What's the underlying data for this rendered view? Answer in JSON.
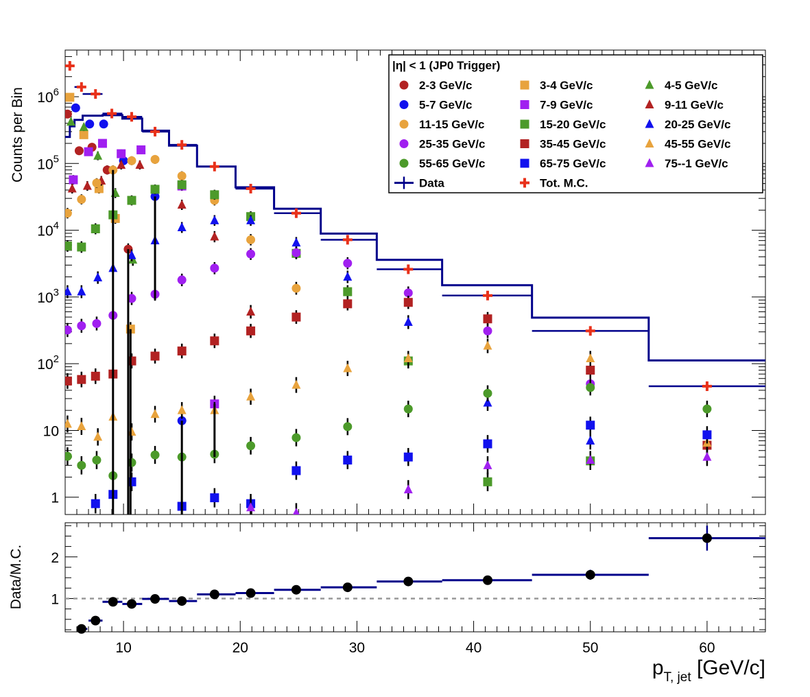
{
  "colors": {
    "data_line": "#00008b",
    "mc_marker": "#e8311a",
    "ratio_marker": "#000000",
    "reference_line": "#999999",
    "frame": "#000000"
  },
  "legend": {
    "header": "|η| < 1 (JP0 Trigger)",
    "data_label": "Data",
    "mc_label": "Tot. M.C."
  },
  "chart_data": [
    {
      "type": "scatter",
      "panel": "main",
      "ylabel": "Counts per Bin",
      "y_scale": "log",
      "xlim": [
        5,
        65
      ],
      "ylim": [
        0.55,
        5000000
      ],
      "x_ticks": [
        10,
        20,
        30,
        40,
        50,
        60
      ],
      "y_tick_labels": [
        {
          "value": 1000000,
          "label": "10",
          "exp": "6"
        },
        {
          "value": 100000,
          "label": "10",
          "exp": "5"
        },
        {
          "value": 10000,
          "label": "10",
          "exp": "4"
        },
        {
          "value": 1000,
          "label": "10",
          "exp": "3"
        },
        {
          "value": 100,
          "label": "10",
          "exp": "2"
        },
        {
          "value": 10,
          "label": "10",
          "exp": ""
        },
        {
          "value": 1,
          "label": "1",
          "exp": ""
        }
      ],
      "legend_position": "top-right",
      "data_bins": [
        {
          "x0": 5.0,
          "x1": 5.4,
          "y": 250000
        },
        {
          "x0": 5.4,
          "x1": 5.8,
          "y": 360000
        },
        {
          "x0": 5.8,
          "x1": 6.5,
          "y": 450000
        },
        {
          "x0": 6.5,
          "x1": 8.2,
          "y": 520000
        },
        {
          "x0": 8.2,
          "x1": 9.9,
          "y": 530000
        },
        {
          "x0": 9.9,
          "x1": 11.6,
          "y": 470000
        },
        {
          "x0": 11.6,
          "x1": 13.9,
          "y": 310000
        },
        {
          "x0": 13.9,
          "x1": 16.3,
          "y": 185000
        },
        {
          "x0": 16.3,
          "x1": 19.6,
          "y": 90000
        },
        {
          "x0": 19.6,
          "x1": 22.9,
          "y": 44000
        },
        {
          "x0": 22.9,
          "x1": 26.9,
          "y": 21000
        },
        {
          "x0": 26.9,
          "x1": 31.7,
          "y": 8900
        },
        {
          "x0": 31.7,
          "x1": 37.3,
          "y": 3600
        },
        {
          "x0": 37.3,
          "x1": 45.0,
          "y": 1500
        },
        {
          "x0": 45.0,
          "x1": 55.0,
          "y": 490
        },
        {
          "x0": 55.0,
          "x1": 65.0,
          "y": 112
        }
      ],
      "mc_total": {
        "x": [
          5.4,
          6.4,
          7.6,
          9.0,
          10.7,
          12.7,
          15.0,
          17.8,
          20.9,
          24.8,
          29.2,
          34.4,
          41.2,
          50.0,
          60.0
        ],
        "y": [
          2900000,
          1400000,
          1100000,
          560000,
          500000,
          300000,
          190000,
          90000,
          42000,
          18000,
          7200,
          2600,
          1050,
          310,
          46
        ]
      },
      "series": [
        {
          "name": "2-3 GeV/c",
          "marker": "circle",
          "color": "#b22222",
          "x": [
            5.2,
            6.2,
            7.3,
            8.6,
            10.4
          ],
          "y": [
            550000,
            155000,
            175000,
            80000,
            5200
          ]
        },
        {
          "name": "3-4 GeV/c",
          "marker": "square",
          "color": "#e8a33d",
          "x": [
            5.4,
            6.6,
            7.9,
            9.3,
            10.6
          ],
          "y": [
            980000,
            270000,
            42000,
            15000,
            330
          ]
        },
        {
          "name": "4-5 GeV/c",
          "marker": "triangle",
          "color": "#4c9a2a",
          "x": [
            5.5,
            6.6,
            7.8,
            9.3,
            10.8
          ],
          "y": [
            420000,
            350000,
            130000,
            36000,
            3600
          ]
        },
        {
          "name": "5-7 GeV/c",
          "marker": "circle",
          "color": "#1111ee",
          "x": [
            5.9,
            7.1,
            8.3,
            10.0,
            12.7,
            15.0
          ],
          "y": [
            680000,
            390000,
            390000,
            110000,
            32000,
            14
          ]
        },
        {
          "name": "7-9 GeV/c",
          "marker": "square",
          "color": "#a020f0",
          "x": [
            5.7,
            7.0,
            8.2,
            9.8,
            11.5,
            15.0,
            17.8
          ],
          "y": [
            57000,
            150000,
            200000,
            140000,
            160000,
            46000,
            25
          ]
        },
        {
          "name": "9-11 GeV/c",
          "marker": "triangle",
          "color": "#b22222",
          "x": [
            5.6,
            6.9,
            8.1,
            9.8,
            11.4,
            15.0,
            17.8,
            20.9
          ],
          "y": [
            42000,
            46000,
            55000,
            95000,
            95000,
            24000,
            8000,
            600
          ]
        },
        {
          "name": "11-15 GeV/c",
          "marker": "circle",
          "color": "#e8a33d",
          "x": [
            5.2,
            6.4,
            7.7,
            9.1,
            10.7,
            12.7,
            15.0,
            17.8,
            20.9,
            24.8
          ],
          "y": [
            18000,
            29000,
            51000,
            80000,
            110000,
            115000,
            65000,
            28000,
            7200,
            1350
          ]
        },
        {
          "name": "15-20 GeV/c",
          "marker": "square",
          "color": "#4c9a2a",
          "x": [
            5.2,
            6.4,
            7.6,
            9.1,
            10.7,
            12.7,
            15.0,
            17.8,
            20.9,
            24.8,
            29.2,
            34.4,
            41.2,
            50.0
          ],
          "y": [
            5800,
            5600,
            10500,
            17000,
            28000,
            41000,
            48000,
            34000,
            16000,
            4500,
            1200,
            110,
            1.7,
            3.5
          ]
        },
        {
          "name": "20-25 GeV/c",
          "marker": "triangle",
          "color": "#1111ee",
          "x": [
            5.2,
            6.4,
            7.8,
            9.1,
            10.7,
            12.7,
            15.0,
            17.8,
            20.9,
            24.8,
            29.2,
            34.4,
            41.2,
            50.0
          ],
          "y": [
            1200,
            1200,
            1950,
            2700,
            4200,
            7000,
            11000,
            14000,
            14000,
            6500,
            2000,
            420,
            26,
            7
          ]
        },
        {
          "name": "25-35 GeV/c",
          "marker": "circle",
          "color": "#a020f0",
          "x": [
            5.2,
            6.4,
            7.7,
            9.1,
            10.7,
            12.7,
            15.0,
            17.8,
            20.9,
            24.8,
            29.2,
            34.4,
            41.2,
            50.0
          ],
          "y": [
            320,
            370,
            400,
            530,
            950,
            1100,
            1800,
            2700,
            4400,
            4600,
            3200,
            1150,
            310,
            50
          ]
        },
        {
          "name": "35-45 GeV/c",
          "marker": "square",
          "color": "#b22222",
          "x": [
            5.2,
            6.4,
            7.6,
            9.1,
            10.7,
            12.7,
            15.0,
            17.8,
            20.9,
            24.8,
            29.2,
            34.4,
            41.2,
            50.0,
            60.0
          ],
          "y": [
            55,
            58,
            65,
            70,
            110,
            130,
            155,
            220,
            310,
            500,
            790,
            830,
            470,
            80,
            6
          ]
        },
        {
          "name": "45-55 GeV/c",
          "marker": "triangle",
          "color": "#e8a33d",
          "x": [
            5.2,
            6.4,
            7.8,
            9.1,
            10.7,
            12.7,
            15.0,
            17.8,
            20.9,
            24.8,
            29.2,
            34.4,
            41.2,
            50.0,
            60.0
          ],
          "y": [
            12.5,
            11.5,
            8,
            16,
            9.5,
            17.5,
            20,
            20,
            32,
            48,
            85,
            120,
            185,
            120,
            6.5
          ]
        },
        {
          "name": "55-65 GeV/c",
          "marker": "circle",
          "color": "#4c9a2a",
          "x": [
            5.2,
            6.4,
            7.7,
            9.1,
            10.7,
            12.7,
            15.0,
            17.8,
            20.9,
            24.8,
            29.2,
            34.4,
            41.2,
            50.0,
            60.0
          ],
          "y": [
            4.1,
            3,
            3.6,
            2.1,
            3.3,
            4.3,
            4,
            4.4,
            5.9,
            7.8,
            11.4,
            21,
            36,
            44,
            21
          ]
        },
        {
          "name": "65-75 GeV/c",
          "marker": "square",
          "color": "#1111ee",
          "x": [
            7.6,
            9.1,
            10.7,
            15.0,
            17.8,
            20.9,
            24.8,
            29.2,
            34.4,
            41.2,
            50.0,
            60.0
          ],
          "y": [
            0.8,
            1.1,
            1.7,
            0.73,
            0.98,
            0.8,
            2.5,
            3.6,
            4,
            6.3,
            12,
            8.6
          ]
        },
        {
          "name": "75--1 GeV/c",
          "marker": "triangle",
          "color": "#a020f0",
          "x": [
            20.9,
            24.8,
            34.4,
            41.2,
            50.0,
            60.0
          ],
          "y": [
            0.7,
            0.58,
            1.3,
            3,
            3.6,
            4
          ]
        }
      ]
    },
    {
      "type": "scatter",
      "panel": "ratio",
      "xlabel": "p",
      "xlabel_sub": "T, jet",
      "xlabel_unit": "[GeV/c]",
      "ylabel": "Data/M.C.",
      "xlim": [
        5,
        65
      ],
      "ylim": [
        0.2,
        2.82
      ],
      "x_ticks": [
        10,
        20,
        30,
        40,
        50,
        60
      ],
      "y_ticks": [
        1,
        2
      ],
      "reference_line": 1,
      "points": [
        {
          "x": 6.4,
          "y": 0.27,
          "x0": 6.0,
          "x1": 6.9
        },
        {
          "x": 7.6,
          "y": 0.47,
          "x0": 7.0,
          "x1": 8.2
        },
        {
          "x": 9.1,
          "y": 0.92,
          "x0": 8.2,
          "x1": 9.9,
          "err": 0.1
        },
        {
          "x": 10.7,
          "y": 0.87,
          "x0": 9.9,
          "x1": 11.6,
          "err": 0.1
        },
        {
          "x": 12.7,
          "y": 0.99,
          "x0": 11.6,
          "x1": 13.9,
          "err": 0.07
        },
        {
          "x": 15.0,
          "y": 0.94,
          "x0": 13.9,
          "x1": 16.3,
          "err": 0.06
        },
        {
          "x": 17.8,
          "y": 1.1,
          "x0": 16.3,
          "x1": 19.6
        },
        {
          "x": 20.9,
          "y": 1.13,
          "x0": 19.6,
          "x1": 22.9
        },
        {
          "x": 24.8,
          "y": 1.21,
          "x0": 22.9,
          "x1": 26.9
        },
        {
          "x": 29.2,
          "y": 1.27,
          "x0": 26.9,
          "x1": 31.7
        },
        {
          "x": 34.4,
          "y": 1.41,
          "x0": 31.7,
          "x1": 37.3
        },
        {
          "x": 41.2,
          "y": 1.44,
          "x0": 37.3,
          "x1": 45.0
        },
        {
          "x": 50.0,
          "y": 1.57,
          "x0": 45.0,
          "x1": 55.0,
          "err": 0.12
        },
        {
          "x": 60.0,
          "y": 2.45,
          "x0": 55.0,
          "x1": 65.0,
          "err": 0.3
        }
      ]
    }
  ]
}
